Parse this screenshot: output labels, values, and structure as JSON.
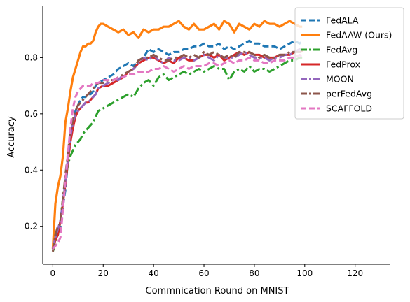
{
  "chart_data": {
    "type": "line",
    "title": "",
    "xlabel": "Commnication Round on MNIST",
    "ylabel": "Accuracy",
    "xlim": [
      -4,
      134
    ],
    "ylim": [
      0.065,
      0.985
    ],
    "xticks": [
      0,
      20,
      40,
      60,
      80,
      100,
      120
    ],
    "yticks": [
      0.2,
      0.4,
      0.6,
      0.8
    ],
    "grid": false,
    "legend_position": "top-right",
    "series": [
      {
        "name": "FedALA",
        "color": "#1f77b4",
        "dash": "dashed",
        "x": [
          0,
          1,
          2,
          3,
          4,
          5,
          6,
          7,
          8,
          9,
          10,
          11,
          12,
          13,
          14,
          15,
          16,
          17,
          18,
          20,
          22,
          24,
          26,
          28,
          30,
          32,
          34,
          36,
          38,
          40,
          42,
          44,
          46,
          48,
          50,
          52,
          54,
          56,
          58,
          60,
          62,
          64,
          66,
          68,
          70,
          72,
          74,
          76,
          78,
          80,
          82,
          84,
          86,
          88,
          90,
          92,
          94,
          96,
          98,
          99
        ],
        "y": [
          0.12,
          0.16,
          0.18,
          0.2,
          0.27,
          0.33,
          0.43,
          0.52,
          0.57,
          0.61,
          0.63,
          0.65,
          0.66,
          0.66,
          0.67,
          0.67,
          0.68,
          0.7,
          0.71,
          0.72,
          0.73,
          0.74,
          0.76,
          0.77,
          0.78,
          0.77,
          0.79,
          0.8,
          0.83,
          0.82,
          0.83,
          0.82,
          0.81,
          0.82,
          0.82,
          0.83,
          0.83,
          0.84,
          0.84,
          0.85,
          0.84,
          0.84,
          0.85,
          0.83,
          0.84,
          0.83,
          0.84,
          0.85,
          0.86,
          0.85,
          0.85,
          0.84,
          0.84,
          0.84,
          0.83,
          0.84,
          0.85,
          0.86,
          0.85,
          0.86
        ]
      },
      {
        "name": "FedAAW (Ours)",
        "color": "#ff7f0e",
        "dash": "solid",
        "x": [
          0,
          1,
          2,
          3,
          4,
          5,
          6,
          7,
          8,
          9,
          10,
          11,
          12,
          13,
          14,
          15,
          16,
          17,
          18,
          19,
          20,
          22,
          24,
          26,
          28,
          30,
          32,
          34,
          36,
          38,
          40,
          42,
          44,
          46,
          48,
          50,
          52,
          54,
          56,
          58,
          60,
          62,
          64,
          66,
          68,
          70,
          72,
          74,
          76,
          78,
          80,
          82,
          84,
          86,
          88,
          90,
          92,
          94,
          96,
          98,
          99
        ],
        "y": [
          0.12,
          0.28,
          0.34,
          0.38,
          0.45,
          0.57,
          0.62,
          0.68,
          0.73,
          0.76,
          0.79,
          0.82,
          0.84,
          0.84,
          0.85,
          0.85,
          0.86,
          0.89,
          0.91,
          0.92,
          0.92,
          0.91,
          0.9,
          0.89,
          0.9,
          0.88,
          0.89,
          0.87,
          0.9,
          0.89,
          0.9,
          0.9,
          0.91,
          0.91,
          0.92,
          0.93,
          0.91,
          0.9,
          0.92,
          0.9,
          0.9,
          0.91,
          0.92,
          0.9,
          0.93,
          0.92,
          0.89,
          0.92,
          0.91,
          0.9,
          0.92,
          0.91,
          0.93,
          0.92,
          0.92,
          0.91,
          0.92,
          0.93,
          0.92,
          0.91,
          0.91
        ]
      },
      {
        "name": "FedAvg",
        "color": "#2ca02c",
        "dash": "dashdot",
        "x": [
          0,
          1,
          2,
          3,
          4,
          5,
          6,
          7,
          8,
          9,
          10,
          11,
          12,
          13,
          14,
          15,
          16,
          17,
          18,
          20,
          22,
          24,
          26,
          28,
          30,
          32,
          34,
          36,
          38,
          40,
          42,
          44,
          46,
          48,
          50,
          52,
          54,
          56,
          58,
          60,
          62,
          64,
          66,
          68,
          70,
          72,
          74,
          76,
          78,
          80,
          82,
          84,
          86,
          88,
          90,
          92,
          94,
          96,
          98,
          99
        ],
        "y": [
          0.11,
          0.14,
          0.17,
          0.22,
          0.3,
          0.36,
          0.42,
          0.45,
          0.47,
          0.49,
          0.5,
          0.51,
          0.53,
          0.54,
          0.55,
          0.56,
          0.57,
          0.59,
          0.61,
          0.62,
          0.63,
          0.64,
          0.65,
          0.66,
          0.67,
          0.66,
          0.69,
          0.71,
          0.72,
          0.7,
          0.73,
          0.74,
          0.72,
          0.73,
          0.74,
          0.75,
          0.74,
          0.75,
          0.76,
          0.75,
          0.76,
          0.77,
          0.76,
          0.76,
          0.72,
          0.75,
          0.76,
          0.75,
          0.77,
          0.75,
          0.76,
          0.76,
          0.75,
          0.76,
          0.77,
          0.78,
          0.79,
          0.79,
          0.8,
          0.8
        ]
      },
      {
        "name": "FedProx",
        "color": "#d62728",
        "dash": "solid",
        "x": [
          0,
          1,
          2,
          3,
          4,
          5,
          6,
          7,
          8,
          9,
          10,
          11,
          12,
          13,
          14,
          15,
          16,
          17,
          18,
          20,
          22,
          24,
          26,
          28,
          30,
          32,
          34,
          36,
          38,
          40,
          42,
          44,
          46,
          48,
          50,
          52,
          54,
          56,
          58,
          60,
          62,
          64,
          66,
          68,
          70,
          72,
          74,
          76,
          78,
          80,
          82,
          84,
          86,
          88,
          90,
          92,
          94,
          96,
          98,
          99
        ],
        "y": [
          0.12,
          0.15,
          0.17,
          0.22,
          0.28,
          0.35,
          0.43,
          0.5,
          0.55,
          0.59,
          0.61,
          0.62,
          0.63,
          0.64,
          0.64,
          0.65,
          0.66,
          0.67,
          0.69,
          0.7,
          0.7,
          0.71,
          0.72,
          0.73,
          0.75,
          0.76,
          0.78,
          0.79,
          0.8,
          0.8,
          0.79,
          0.78,
          0.79,
          0.78,
          0.8,
          0.8,
          0.79,
          0.79,
          0.8,
          0.81,
          0.81,
          0.8,
          0.81,
          0.79,
          0.8,
          0.81,
          0.82,
          0.81,
          0.82,
          0.81,
          0.81,
          0.8,
          0.8,
          0.8,
          0.81,
          0.81,
          0.81,
          0.82,
          0.83,
          0.82
        ]
      },
      {
        "name": "MOON",
        "color": "#9467bd",
        "dash": "dashdot",
        "x": [
          0,
          1,
          2,
          3,
          4,
          5,
          6,
          7,
          8,
          9,
          10,
          11,
          12,
          13,
          14,
          15,
          16,
          17,
          18,
          20,
          22,
          24,
          26,
          28,
          30,
          32,
          34,
          36,
          38,
          40,
          42,
          44,
          46,
          48,
          50,
          52,
          54,
          56,
          58,
          60,
          62,
          64,
          66,
          68,
          70,
          72,
          74,
          76,
          78,
          80,
          82,
          84,
          86,
          88,
          90,
          92,
          94,
          96,
          98,
          99
        ],
        "y": [
          0.12,
          0.16,
          0.19,
          0.22,
          0.29,
          0.36,
          0.44,
          0.52,
          0.57,
          0.6,
          0.61,
          0.62,
          0.63,
          0.64,
          0.64,
          0.65,
          0.66,
          0.67,
          0.69,
          0.7,
          0.71,
          0.72,
          0.72,
          0.74,
          0.75,
          0.76,
          0.78,
          0.8,
          0.79,
          0.81,
          0.79,
          0.78,
          0.8,
          0.79,
          0.79,
          0.8,
          0.8,
          0.79,
          0.8,
          0.81,
          0.8,
          0.79,
          0.81,
          0.8,
          0.8,
          0.8,
          0.81,
          0.82,
          0.81,
          0.8,
          0.8,
          0.8,
          0.79,
          0.8,
          0.8,
          0.81,
          0.81,
          0.82,
          0.83,
          0.82
        ]
      },
      {
        "name": "perFedAvg",
        "color": "#8c564b",
        "dash": "dashdot",
        "x": [
          0,
          1,
          2,
          3,
          4,
          5,
          6,
          7,
          8,
          9,
          10,
          11,
          12,
          13,
          14,
          15,
          16,
          17,
          18,
          20,
          22,
          24,
          26,
          28,
          30,
          32,
          34,
          36,
          38,
          40,
          42,
          44,
          46,
          48,
          50,
          52,
          54,
          56,
          58,
          60,
          62,
          64,
          66,
          68,
          70,
          72,
          74,
          76,
          78,
          80,
          82,
          84,
          86,
          88,
          90,
          92,
          94,
          96,
          98,
          99
        ],
        "y": [
          0.11,
          0.17,
          0.2,
          0.21,
          0.3,
          0.38,
          0.46,
          0.54,
          0.58,
          0.61,
          0.63,
          0.64,
          0.65,
          0.66,
          0.67,
          0.68,
          0.69,
          0.7,
          0.71,
          0.71,
          0.72,
          0.72,
          0.73,
          0.74,
          0.75,
          0.76,
          0.79,
          0.8,
          0.8,
          0.81,
          0.8,
          0.79,
          0.79,
          0.8,
          0.8,
          0.81,
          0.8,
          0.81,
          0.8,
          0.82,
          0.81,
          0.82,
          0.81,
          0.8,
          0.81,
          0.8,
          0.82,
          0.82,
          0.82,
          0.81,
          0.8,
          0.81,
          0.8,
          0.8,
          0.81,
          0.81,
          0.82,
          0.82,
          0.82,
          0.82
        ]
      },
      {
        "name": "SCAFFOLD",
        "color": "#e377c2",
        "dash": "dashed",
        "x": [
          0,
          1,
          2,
          3,
          4,
          5,
          6,
          7,
          8,
          9,
          10,
          11,
          12,
          13,
          14,
          15,
          16,
          17,
          18,
          20,
          22,
          24,
          26,
          28,
          30,
          32,
          34,
          36,
          38,
          40,
          42,
          44,
          46,
          48,
          50,
          52,
          54,
          56,
          58,
          60,
          62,
          64,
          66,
          68,
          70,
          72,
          74,
          76,
          78,
          80,
          82,
          84,
          86,
          88,
          90,
          92,
          94,
          96,
          98,
          99
        ],
        "y": [
          0.12,
          0.13,
          0.14,
          0.16,
          0.26,
          0.36,
          0.46,
          0.55,
          0.62,
          0.66,
          0.68,
          0.69,
          0.7,
          0.7,
          0.7,
          0.7,
          0.71,
          0.71,
          0.71,
          0.72,
          0.72,
          0.72,
          0.73,
          0.73,
          0.74,
          0.74,
          0.75,
          0.75,
          0.75,
          0.76,
          0.76,
          0.77,
          0.76,
          0.75,
          0.76,
          0.77,
          0.76,
          0.77,
          0.77,
          0.77,
          0.78,
          0.78,
          0.77,
          0.78,
          0.79,
          0.78,
          0.79,
          0.79,
          0.8,
          0.79,
          0.79,
          0.78,
          0.78,
          0.79,
          0.79,
          0.79,
          0.8,
          0.8,
          0.81,
          0.8
        ]
      }
    ]
  }
}
